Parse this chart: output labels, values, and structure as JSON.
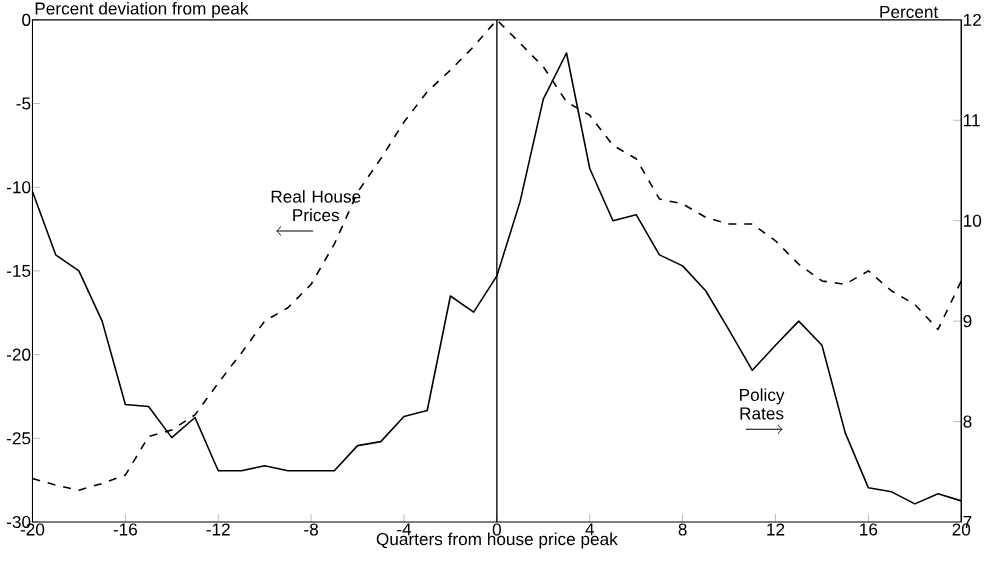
{
  "chart_data": {
    "type": "line",
    "xlabel": "Quarters from house price peak",
    "ylabel": "Percent deviation from peak",
    "y2label": "Percent",
    "x": [
      -20,
      -19,
      -18,
      -17,
      -16,
      -15,
      -14,
      -13,
      -12,
      -11,
      -10,
      -9,
      -8,
      -7,
      -6,
      -5,
      -4,
      -3,
      -2,
      -1,
      0,
      1,
      2,
      3,
      4,
      5,
      6,
      7,
      8,
      9,
      10,
      11,
      12,
      13,
      14,
      15,
      16,
      17,
      18,
      19,
      20
    ],
    "series": [
      {
        "name": "Real House Prices",
        "color": "#000000",
        "line_style": "dashed",
        "values": [
          -27.4,
          -27.8,
          -28.1,
          -27.7,
          -27.2,
          -24.9,
          -24.5,
          -23.6,
          -21.7,
          -19.9,
          -18.0,
          -17.2,
          -15.8,
          -13.4,
          -10.3,
          -8.3,
          -6.1,
          -4.3,
          -3.0,
          -1.6,
          0,
          -1.4,
          -2.8,
          -4.9,
          -5.7,
          -7.5,
          -8.3,
          -10.7,
          -11.0,
          -11.8,
          -12.2,
          -12.2,
          -13.2,
          -14.6,
          -15.6,
          -15.8,
          -15.0,
          -16.2,
          -17.0,
          -18.5,
          -15.6
        ]
      },
      {
        "name": "Policy Rates",
        "color": "#000000",
        "line_style": "solid",
        "axis": "y2",
        "values": [
          10.29,
          9.66,
          9.5,
          9.0,
          8.17,
          8.15,
          7.84,
          8.04,
          7.51,
          7.51,
          7.56,
          7.51,
          7.51,
          7.51,
          7.76,
          7.8,
          8.05,
          8.11,
          9.25,
          9.09,
          9.45,
          10.19,
          11.21,
          11.67,
          10.52,
          10.0,
          10.06,
          9.66,
          9.55,
          9.3,
          8.91,
          8.51,
          8.76,
          9.0,
          8.76,
          7.89,
          7.34,
          7.3,
          7.18,
          7.28,
          7.21
        ]
      }
    ],
    "xlim": [
      -20,
      20
    ],
    "xticks": [
      -20,
      -16,
      -12,
      -8,
      -4,
      0,
      4,
      8,
      12,
      16,
      20
    ],
    "ylim": [
      -30,
      0
    ],
    "yticks": [
      -30,
      -25,
      -20,
      -15,
      -10,
      -5,
      0
    ],
    "y2lim": [
      7,
      12
    ],
    "y2ticks": [
      7,
      8,
      9,
      10,
      11,
      12
    ],
    "ref_lines": [
      {
        "axis": "x",
        "value": 0
      }
    ]
  }
}
